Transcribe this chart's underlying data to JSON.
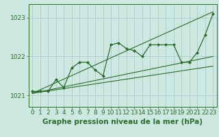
{
  "bg_color": "#cce8e0",
  "grid_color": "#aacccc",
  "line_color": "#2d6b2d",
  "marker_color": "#2d6b2d",
  "title": "Graphe pression niveau de la mer (hPa)",
  "ylim": [
    1020.7,
    1023.35
  ],
  "xlim": [
    -0.5,
    23.5
  ],
  "yticks": [
    1021,
    1022,
    1023
  ],
  "xticks": [
    0,
    1,
    2,
    3,
    4,
    5,
    6,
    7,
    8,
    9,
    10,
    11,
    12,
    13,
    14,
    15,
    16,
    17,
    18,
    19,
    20,
    21,
    22,
    23
  ],
  "series1": [
    1021.1,
    1021.1,
    1021.1,
    1021.4,
    1021.2,
    1021.7,
    1021.85,
    1021.85,
    1021.65,
    1021.5,
    1022.3,
    1022.35,
    1022.2,
    1022.15,
    1022.0,
    1022.3,
    1022.3,
    1022.3,
    1022.3,
    1021.85,
    1021.85,
    1022.1,
    1022.55,
    1023.1
  ],
  "diag_lines": [
    [
      0,
      1021.05,
      23,
      1023.15
    ],
    [
      0,
      1021.05,
      23,
      1022.0
    ],
    [
      0,
      1021.05,
      23,
      1021.75
    ]
  ],
  "title_fontsize": 7.5,
  "tick_fontsize": 6.5
}
